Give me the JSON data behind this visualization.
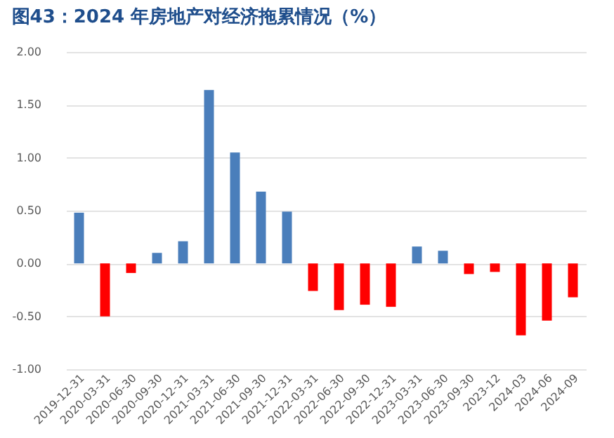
{
  "chart_data": {
    "type": "bar",
    "title": "图43：2024 年房地产对经济拖累情况（%）",
    "categories": [
      "2019-12-31",
      "2020-03-31",
      "2020-06-30",
      "2020-09-30",
      "2020-12-31",
      "2021-03-31",
      "2021-06-30",
      "2021-09-30",
      "2021-12-31",
      "2022-03-31",
      "2022-06-30",
      "2022-09-30",
      "2022-12-31",
      "2023-03-31",
      "2023-06-30",
      "2023-09-30",
      "2023-12",
      "2024-03",
      "2024-06",
      "2024-09"
    ],
    "values": [
      0.48,
      -0.5,
      -0.09,
      0.1,
      0.21,
      1.64,
      1.05,
      0.68,
      0.49,
      -0.26,
      -0.44,
      -0.39,
      -0.41,
      0.16,
      0.12,
      -0.1,
      -0.08,
      -0.68,
      -0.54,
      -0.32
    ],
    "colors": [
      "#4a7ebb",
      "#ff0000",
      "#ff0000",
      "#4a7ebb",
      "#4a7ebb",
      "#4a7ebb",
      "#4a7ebb",
      "#4a7ebb",
      "#4a7ebb",
      "#ff0000",
      "#ff0000",
      "#ff0000",
      "#ff0000",
      "#4a7ebb",
      "#4a7ebb",
      "#ff0000",
      "#ff0000",
      "#ff0000",
      "#ff0000",
      "#ff0000"
    ],
    "ylim": [
      -1.0,
      2.0
    ],
    "yticks": [
      {
        "value": -1.0,
        "label": "-1.00"
      },
      {
        "value": -0.5,
        "label": "-0.50"
      },
      {
        "value": 0,
        "label": "0.00"
      },
      {
        "value": 0.5,
        "label": "0.50"
      },
      {
        "value": 1.0,
        "label": "1.00"
      },
      {
        "value": 1.5,
        "label": "1.50"
      },
      {
        "value": 2.0,
        "label": "2.00"
      }
    ],
    "grid": "y"
  }
}
